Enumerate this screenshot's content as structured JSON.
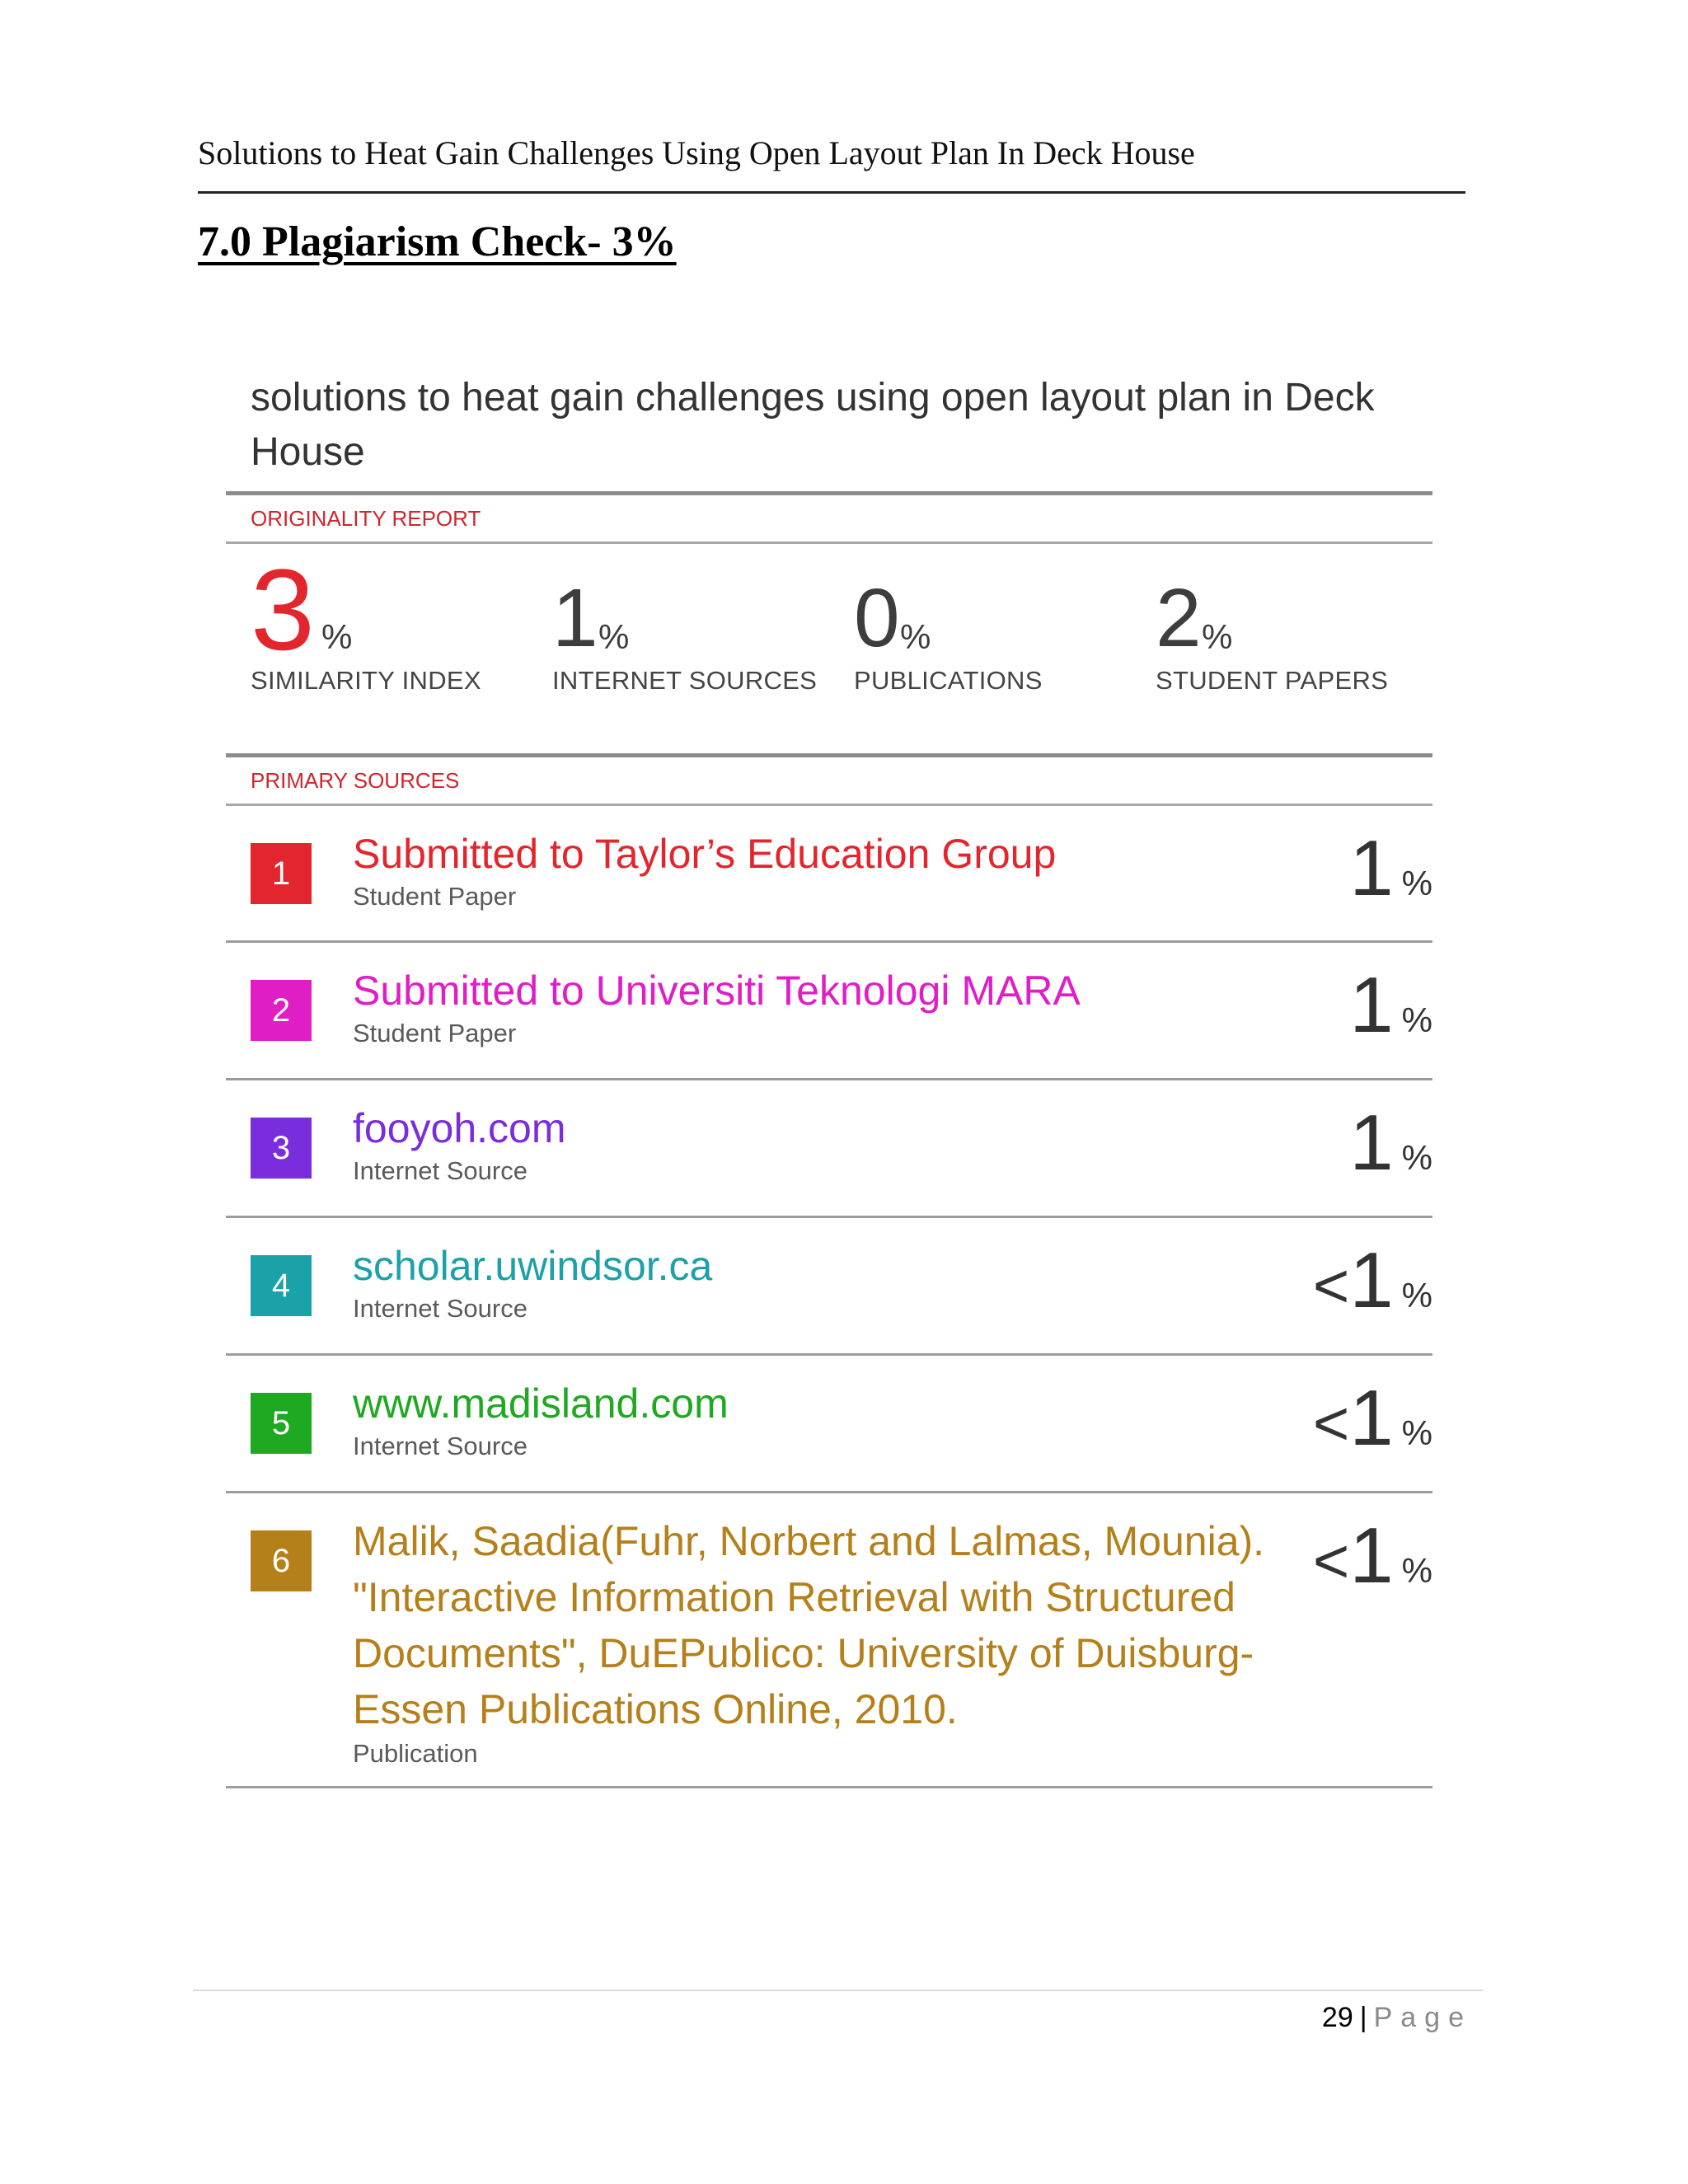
{
  "header": {
    "running_title": "Solutions  to Heat Gain Challenges  Using  Open Layout  Plan In Deck House"
  },
  "section_heading": "7.0  Plagiarism  Check-  3%",
  "report": {
    "title": "solutions to heat gain challenges using open layout plan in Deck House",
    "originality_label": "ORIGINALITY REPORT",
    "primary_label": "PRIMARY SOURCES",
    "stats": [
      {
        "value": "3",
        "unit": "%",
        "label": "SIMILARITY INDEX"
      },
      {
        "value": "1",
        "unit": "%",
        "label": "INTERNET SOURCES"
      },
      {
        "value": "0",
        "unit": "%",
        "label": "PUBLICATIONS"
      },
      {
        "value": "2",
        "unit": "%",
        "label": "STUDENT PAPERS"
      }
    ],
    "sources": [
      {
        "num": "1",
        "title": "Submitted to Taylor’s Education Group",
        "type": "Student Paper",
        "prefix": "",
        "value": "1",
        "unit": "%",
        "color": "#e3262d"
      },
      {
        "num": "2",
        "title": "Submitted to Universiti Teknologi MARA",
        "type": "Student Paper",
        "prefix": "",
        "value": "1",
        "unit": "%",
        "color": "#e01ec6"
      },
      {
        "num": "3",
        "title": "fooyoh.com",
        "type": "Internet Source",
        "prefix": "",
        "value": "1",
        "unit": "%",
        "color": "#7a2ddc"
      },
      {
        "num": "4",
        "title": "scholar.uwindsor.ca",
        "type": "Internet Source",
        "prefix": "<",
        "value": "1",
        "unit": "%",
        "color": "#1aa2a8"
      },
      {
        "num": "5",
        "title": "www.madisland.com",
        "type": "Internet Source",
        "prefix": "<",
        "value": "1",
        "unit": "%",
        "color": "#1fa822"
      },
      {
        "num": "6",
        "title": "Malik, Saadia(Fuhr, Norbert and Lalmas, Mounia). \"Interactive Information Retrieval with Structured Documents\", DuEPublico: University of Duisburg-Essen Publications Online, 2010.",
        "type": "Publication",
        "prefix": "<",
        "value": "1",
        "unit": "%",
        "color": "#b5801a"
      }
    ]
  },
  "footer": {
    "page_number": "29",
    "separator": "|",
    "page_word": "Page"
  }
}
